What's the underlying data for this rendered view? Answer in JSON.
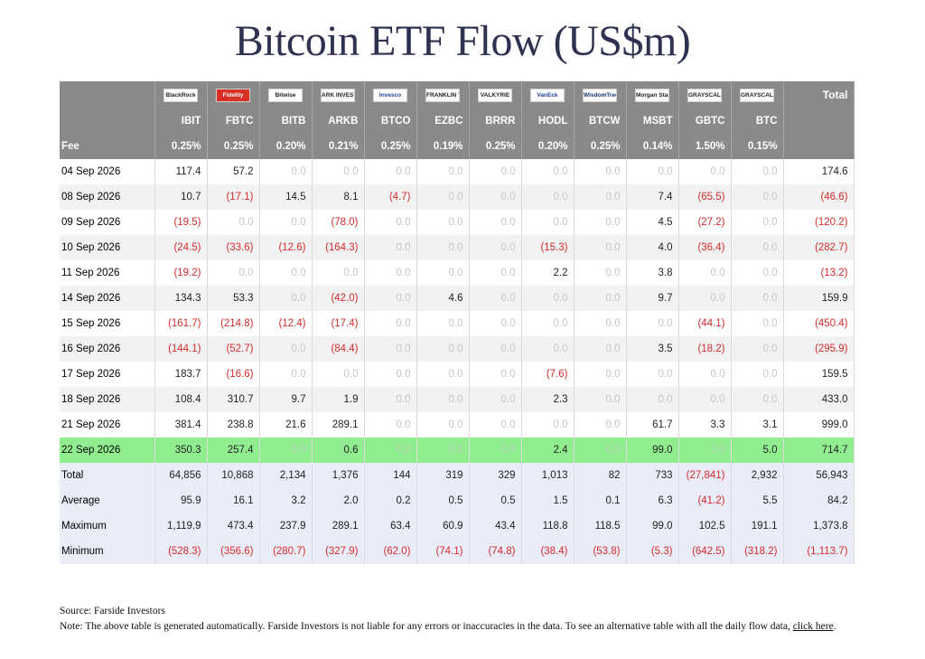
{
  "title": "Bitcoin ETF Flow (US$m)",
  "colors": {
    "header": "#8a8a8a",
    "negative": "#d62b2b",
    "zero": "#c6c6c6",
    "highlight": "#90ee90",
    "summary": "#eaecf7"
  },
  "issuers": [
    {
      "logo_text": "BlackRock",
      "icon": "blackrock-logo",
      "style": "plain"
    },
    {
      "logo_text": "Fidelity",
      "icon": "fidelity-logo",
      "style": "red"
    },
    {
      "logo_text": "Bitwise",
      "icon": "bitwise-logo",
      "style": "plain"
    },
    {
      "logo_text": "ARK INVEST",
      "icon": "ark-invest-logo",
      "style": "plain"
    },
    {
      "logo_text": "Invesco",
      "icon": "invesco-logo",
      "style": "blue"
    },
    {
      "logo_text": "FRANKLIN TEMPLETON",
      "icon": "franklin-templeton-logo",
      "style": "plain"
    },
    {
      "logo_text": "VALKYRIE",
      "icon": "valkyrie-logo",
      "style": "plain"
    },
    {
      "logo_text": "VanEck",
      "icon": "vaneck-logo",
      "style": "blue"
    },
    {
      "logo_text": "WisdomTree",
      "icon": "wisdomtree-logo",
      "style": "navy"
    },
    {
      "logo_text": "Morgan Stanley",
      "icon": "morgan-stanley-logo",
      "style": "plain"
    },
    {
      "logo_text": "GRAYSCALE",
      "icon": "grayscale-logo",
      "style": "plain"
    },
    {
      "logo_text": "GRAYSCALE",
      "icon": "grayscale-logo",
      "style": "plain"
    }
  ],
  "total_header": "Total",
  "tickers": [
    "IBIT",
    "FBTC",
    "BITB",
    "ARKB",
    "BTCO",
    "EZBC",
    "BRRR",
    "HODL",
    "BTCW",
    "MSBT",
    "GBTC",
    "BTC"
  ],
  "fee_label": "Fee",
  "fees": [
    "0.25%",
    "0.25%",
    "0.20%",
    "0.21%",
    "0.25%",
    "0.19%",
    "0.25%",
    "0.20%",
    "0.25%",
    "0.14%",
    "1.50%",
    "0.15%"
  ],
  "rows": [
    {
      "date": "04 Sep 2026",
      "values": [
        "117.4",
        "57.2",
        "0.0",
        "0.0",
        "0.0",
        "0.0",
        "0.0",
        "0.0",
        "0.0",
        "0.0",
        "0.0",
        "0.0"
      ],
      "total": "174.6"
    },
    {
      "date": "08 Sep 2026",
      "values": [
        "10.7",
        "(17.1)",
        "14.5",
        "8.1",
        "(4.7)",
        "0.0",
        "0.0",
        "0.0",
        "0.0",
        "7.4",
        "(65.5)",
        "0.0"
      ],
      "total": "(46.6)"
    },
    {
      "date": "09 Sep 2026",
      "values": [
        "(19.5)",
        "0.0",
        "0.0",
        "(78.0)",
        "0.0",
        "0.0",
        "0.0",
        "0.0",
        "0.0",
        "4.5",
        "(27.2)",
        "0.0"
      ],
      "total": "(120.2)"
    },
    {
      "date": "10 Sep 2026",
      "values": [
        "(24.5)",
        "(33.6)",
        "(12.6)",
        "(164.3)",
        "0.0",
        "0.0",
        "0.0",
        "(15.3)",
        "0.0",
        "4.0",
        "(36.4)",
        "0.0"
      ],
      "total": "(282.7)"
    },
    {
      "date": "11 Sep 2026",
      "values": [
        "(19.2)",
        "0.0",
        "0.0",
        "0.0",
        "0.0",
        "0.0",
        "0.0",
        "2.2",
        "0.0",
        "3.8",
        "0.0",
        "0.0"
      ],
      "total": "(13.2)"
    },
    {
      "date": "14 Sep 2026",
      "values": [
        "134.3",
        "53.3",
        "0.0",
        "(42.0)",
        "0.0",
        "4.6",
        "0.0",
        "0.0",
        "0.0",
        "9.7",
        "0.0",
        "0.0"
      ],
      "total": "159.9"
    },
    {
      "date": "15 Sep 2026",
      "values": [
        "(161.7)",
        "(214.8)",
        "(12.4)",
        "(17.4)",
        "0.0",
        "0.0",
        "0.0",
        "0.0",
        "0.0",
        "0.0",
        "(44.1)",
        "0.0"
      ],
      "total": "(450.4)"
    },
    {
      "date": "16 Sep 2026",
      "values": [
        "(144.1)",
        "(52.7)",
        "0.0",
        "(84.4)",
        "0.0",
        "0.0",
        "0.0",
        "0.0",
        "0.0",
        "3.5",
        "(18.2)",
        "0.0"
      ],
      "total": "(295.9)"
    },
    {
      "date": "17 Sep 2026",
      "values": [
        "183.7",
        "(16.6)",
        "0.0",
        "0.0",
        "0.0",
        "0.0",
        "0.0",
        "(7.6)",
        "0.0",
        "0.0",
        "0.0",
        "0.0"
      ],
      "total": "159.5"
    },
    {
      "date": "18 Sep 2026",
      "values": [
        "108.4",
        "310.7",
        "9.7",
        "1.9",
        "0.0",
        "0.0",
        "0.0",
        "2.3",
        "0.0",
        "0.0",
        "0.0",
        "0.0"
      ],
      "total": "433.0"
    },
    {
      "date": "21 Sep 2026",
      "values": [
        "381.4",
        "238.8",
        "21.6",
        "289.1",
        "0.0",
        "0.0",
        "0.0",
        "0.0",
        "0.0",
        "61.7",
        "3.3",
        "3.1"
      ],
      "total": "999.0"
    },
    {
      "date": "22 Sep 2026",
      "values": [
        "350.3",
        "257.4",
        "0.0",
        "0.6",
        "0.0",
        "0.0",
        "0.0",
        "2.4",
        "0.0",
        "99.0",
        "0.0",
        "5.0"
      ],
      "total": "714.7",
      "highlight": true
    }
  ],
  "summary": [
    {
      "label": "Total",
      "values": [
        "64,856",
        "10,868",
        "2,134",
        "1,376",
        "144",
        "319",
        "329",
        "1,013",
        "82",
        "733",
        "(27,841)",
        "2,932"
      ],
      "total": "56,943"
    },
    {
      "label": "Average",
      "values": [
        "95.9",
        "16.1",
        "3.2",
        "2.0",
        "0.2",
        "0.5",
        "0.5",
        "1.5",
        "0.1",
        "6.3",
        "(41.2)",
        "5.5"
      ],
      "total": "84.2"
    },
    {
      "label": "Maximum",
      "values": [
        "1,119.9",
        "473.4",
        "237.9",
        "289.1",
        "63.4",
        "60.9",
        "43.4",
        "118.8",
        "118.5",
        "99.0",
        "102.5",
        "191.1"
      ],
      "total": "1,373.8"
    },
    {
      "label": "Minimum",
      "values": [
        "(528.3)",
        "(356.6)",
        "(280.7)",
        "(327.9)",
        "(62.0)",
        "(74.1)",
        "(74.8)",
        "(38.4)",
        "(53.8)",
        "(5.3)",
        "(642.5)",
        "(318.2)"
      ],
      "total": "(1,113.7)"
    }
  ],
  "footer": {
    "source": "Source: Farside Investors",
    "note": "Note: The above table is generated automatically. Farside Investors is not liable for any errors or inaccuracies in the data. To see an alternative table with all the daily flow data,",
    "link_text": "click here",
    "end": "."
  }
}
